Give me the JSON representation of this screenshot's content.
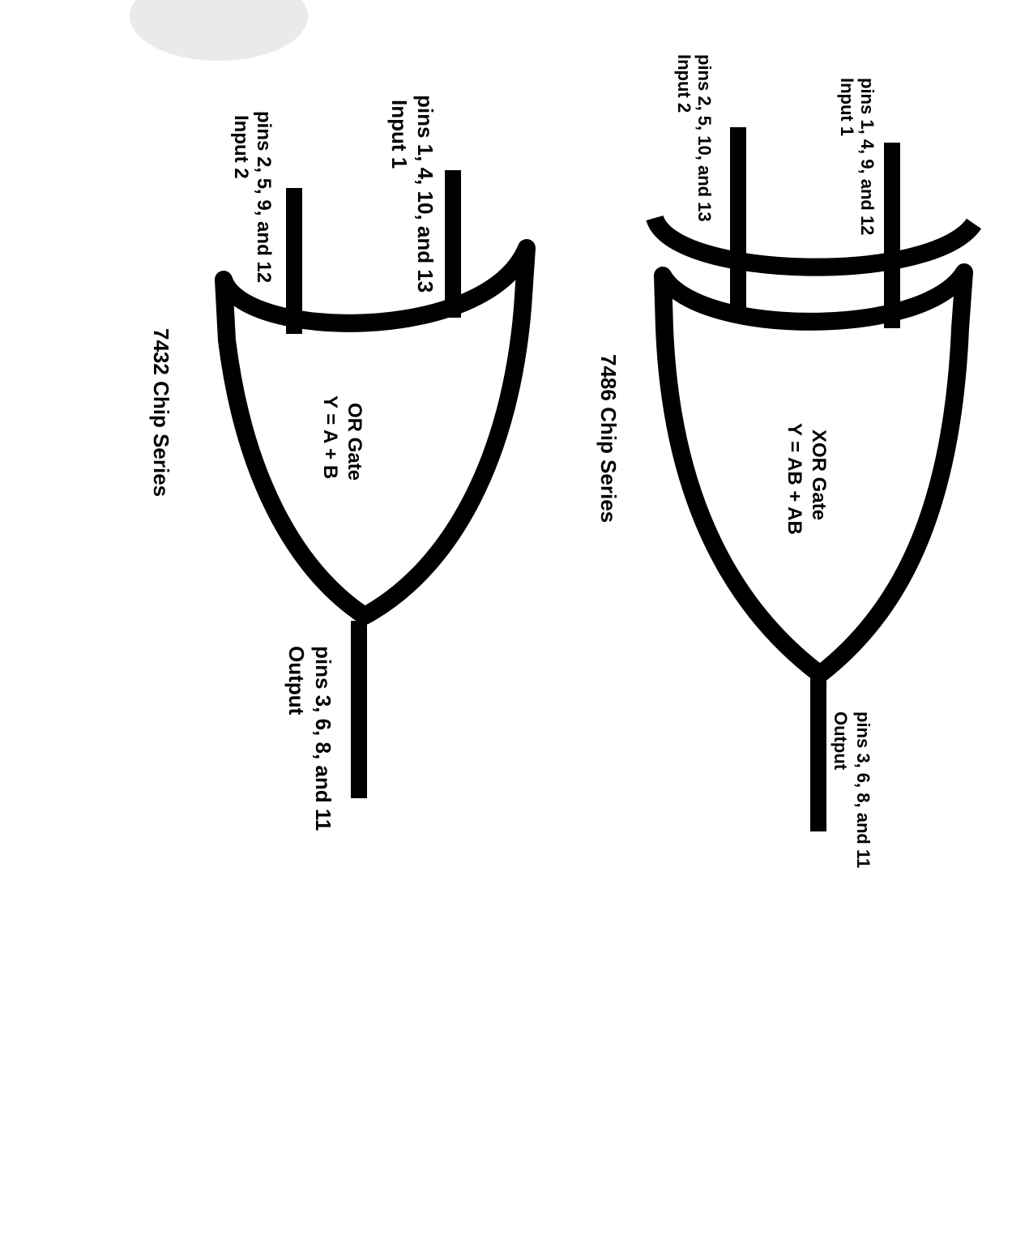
{
  "gates": {
    "xor": {
      "name": "XOR Gate",
      "equation": "Y = AB + AB",
      "chip_series": "7486 Chip Series",
      "input1_pins": "pins 1, 4, 9, and 12",
      "input1_label": "Input 1",
      "input2_pins": "pins 2, 5, 10, and 13",
      "input2_label": "Input 2",
      "output_pins": "pins 3, 6, 8, and 11",
      "output_label": "Output"
    },
    "or": {
      "name": "OR Gate",
      "equation": "Y = A + B",
      "chip_series": "7432 Chip Series",
      "input1_pins": "pins 1, 4, 10, and 13",
      "input1_label": "Input 1",
      "input2_pins": "pins 2, 5, 9, and 12",
      "input2_label": "Input 2",
      "output_pins": "pins 3, 6, 8, and 11",
      "output_label": "Output"
    }
  },
  "colors": {
    "ink": "#000000",
    "paper": "#ffffff"
  }
}
